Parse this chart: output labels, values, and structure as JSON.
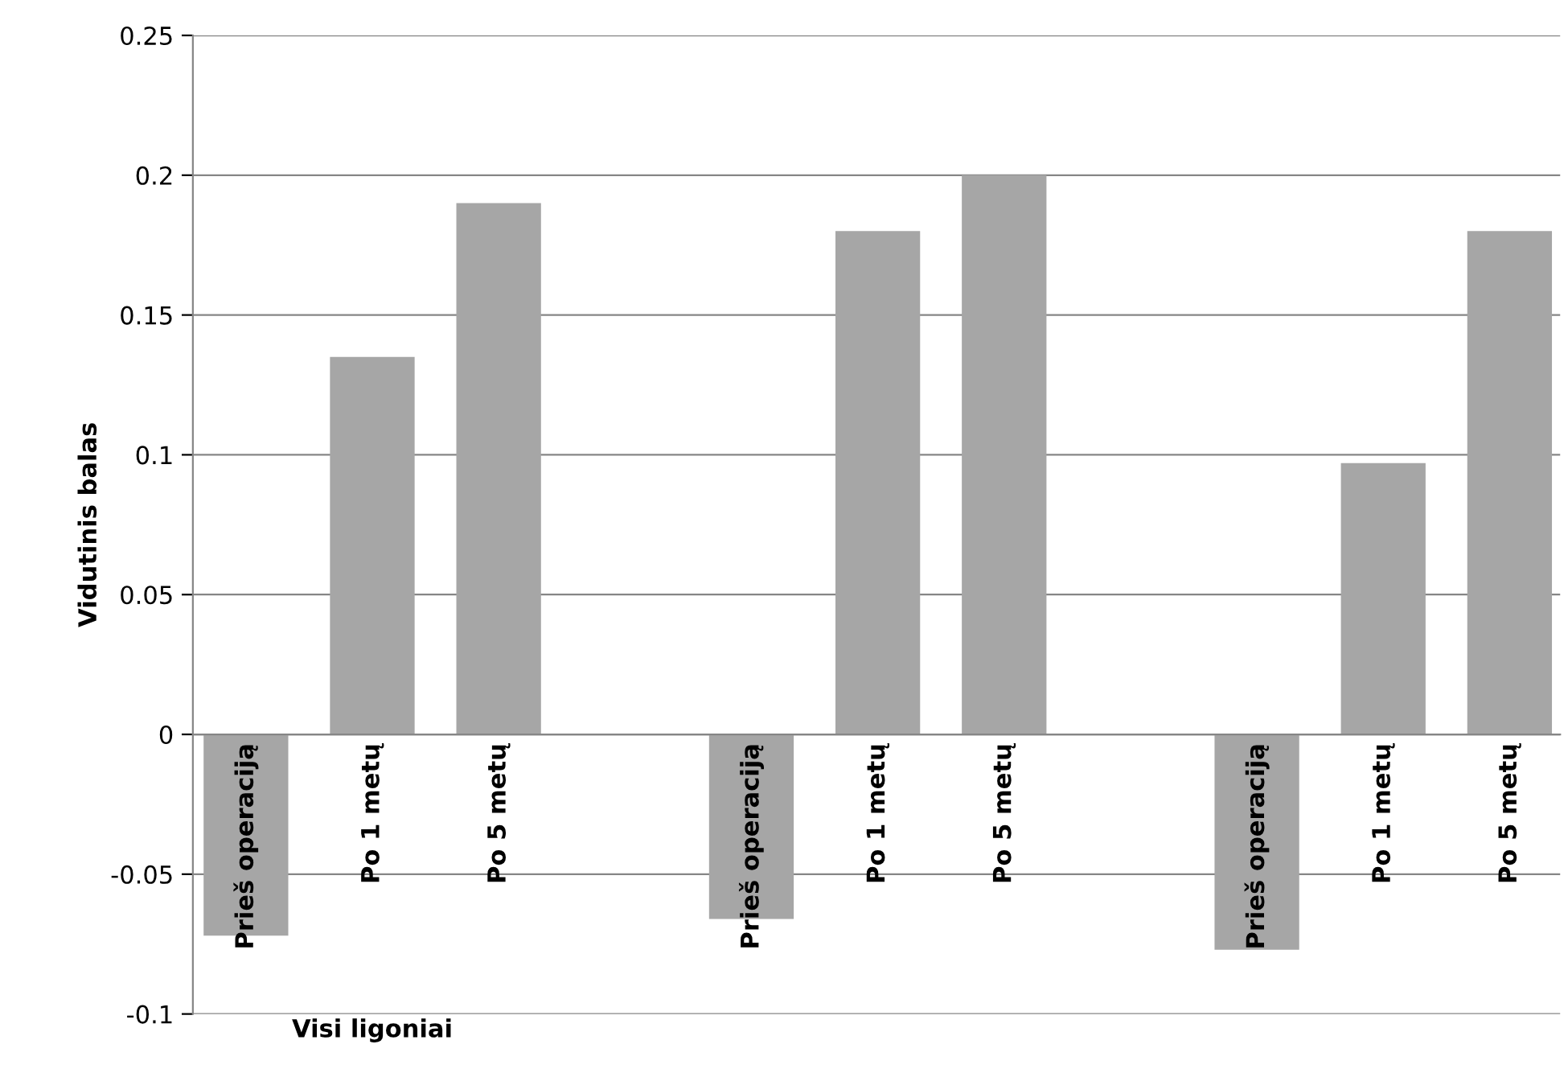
{
  "chart_data": {
    "type": "bar",
    "ylabel": "Vidutinis balas",
    "categories": [
      "Prieš operaciją",
      "Po 1 metų",
      "Po 5 metų",
      null,
      "Prieš operaciją",
      "Po 1 metų",
      "Po 5 metų",
      null,
      "Prieš operaciją",
      "Po 1 metų",
      "Po 5 metų"
    ],
    "values": [
      -0.072,
      0.135,
      0.19,
      null,
      -0.066,
      0.18,
      0.2,
      null,
      -0.077,
      0.097,
      0.18
    ],
    "color": "#a6a6a6",
    "ylim": [
      -0.1,
      0.25
    ],
    "yticks": [
      -0.1,
      -0.05,
      0,
      0.05,
      0.1,
      0.15,
      0.2,
      0.25
    ],
    "grid": "y",
    "annotations": [
      "Visi ligoniai"
    ]
  }
}
